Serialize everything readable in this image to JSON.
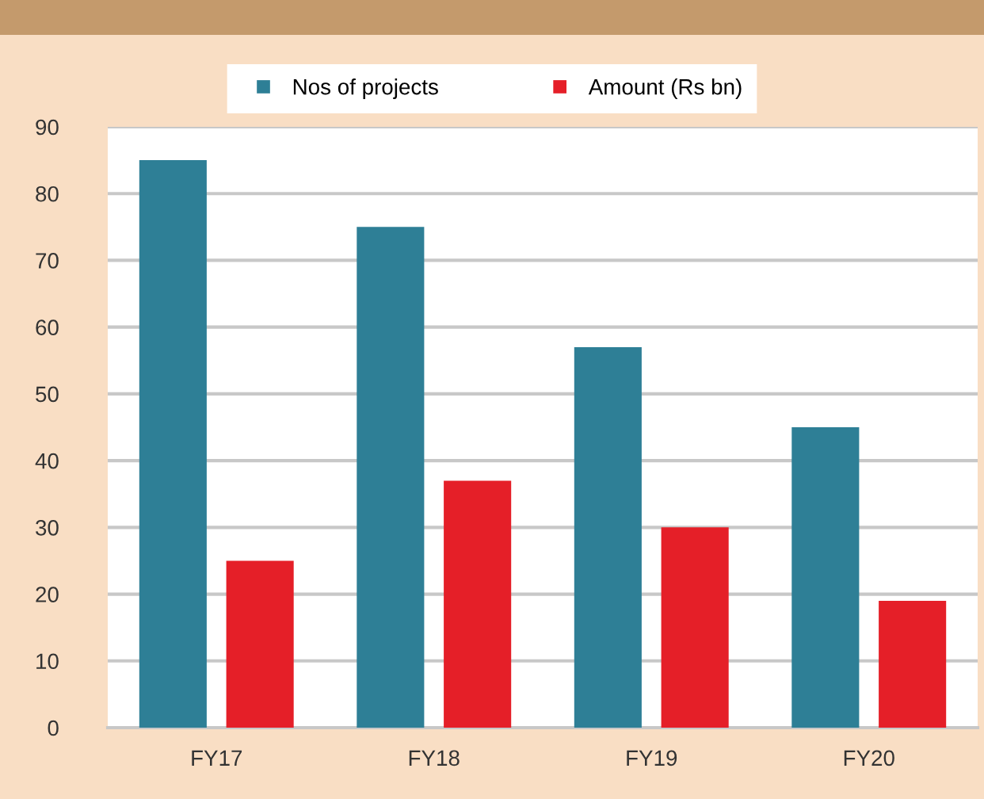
{
  "chart_data": {
    "type": "bar",
    "categories": [
      "FY17",
      "FY18",
      "FY19",
      "FY20"
    ],
    "series": [
      {
        "name": "Nos of projects",
        "color": "#2e7f96",
        "values": [
          85,
          75,
          57,
          45
        ]
      },
      {
        "name": "Amount (Rs bn)",
        "color": "#e51f28",
        "values": [
          25,
          37,
          30,
          19
        ]
      }
    ],
    "ylim": [
      0,
      90
    ],
    "yticks": [
      0,
      10,
      20,
      30,
      40,
      50,
      60,
      70,
      80,
      90
    ],
    "grid": "y",
    "legend": "top"
  }
}
